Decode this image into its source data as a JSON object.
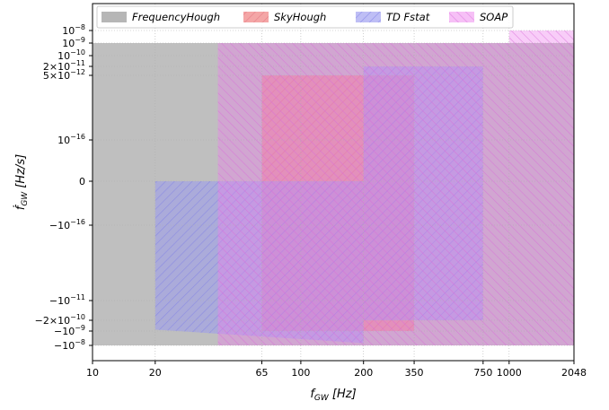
{
  "chart_data": {
    "type": "area",
    "xlabel": "f_GW [Hz]",
    "ylabel": "ḟ_GW [Hz/s]",
    "x_scale": "log",
    "y_scale": "symlog",
    "xlim": [
      10,
      2048
    ],
    "x_ticks": [
      {
        "value": 10,
        "label": "10"
      },
      {
        "value": 20,
        "label": "20"
      },
      {
        "value": 65,
        "label": "65"
      },
      {
        "value": 100,
        "label": "100"
      },
      {
        "value": 200,
        "label": "200"
      },
      {
        "value": 350,
        "label": "350"
      },
      {
        "value": 750,
        "label": "750"
      },
      {
        "value": 1000,
        "label": "1000"
      },
      {
        "value": 2048,
        "label": "2048"
      }
    ],
    "y_ticks": [
      {
        "label": "10−8",
        "value": 1e-08
      },
      {
        "label": "10−9",
        "value": 1e-09
      },
      {
        "label": "10−10",
        "value": 1e-10
      },
      {
        "label": "2×10−11",
        "value": 2e-11
      },
      {
        "label": "5×10−12",
        "value": 5e-12
      },
      {
        "label": "10−16",
        "value": 1e-16
      },
      {
        "label": "0",
        "value": 0
      },
      {
        "label": "−10−16",
        "value": -1e-16
      },
      {
        "label": "−10−11",
        "value": -1e-11
      },
      {
        "label": "−2×10−10",
        "value": -2e-10
      },
      {
        "label": "−10−9",
        "value": -1e-09
      },
      {
        "label": "−10−8",
        "value": -1e-08
      }
    ],
    "legend": {
      "position": "top"
    },
    "series": [
      {
        "name": "FrequencyHough",
        "color": "#a9a9a9",
        "hatch": "none",
        "regions": [
          {
            "x": [
              10,
              2048
            ],
            "y": [
              -1e-08,
              1e-09
            ]
          }
        ]
      },
      {
        "name": "SkyHough",
        "color": "#f08080",
        "hatch": "diagonal",
        "regions": [
          {
            "x": [
              65,
              350
            ],
            "y": [
              -1e-09,
              5e-12
            ]
          }
        ]
      },
      {
        "name": "TD Fstat",
        "color": "#9b9bf0",
        "hatch": "diagonal",
        "regions": [
          {
            "x": [
              20,
              200
            ],
            "y": [
              -5e-09,
              0
            ],
            "bottom_edge": [
              [
                20,
                -8e-10
              ],
              [
                200,
                -7e-09
              ]
            ]
          },
          {
            "x": [
              200,
              750
            ],
            "y": [
              -2e-10,
              2e-11
            ]
          }
        ]
      },
      {
        "name": "SOAP",
        "color": "#ee82ee",
        "hatch": "crosshatch",
        "regions": [
          {
            "x": [
              40,
              1000
            ],
            "y": [
              -1e-08,
              1e-09
            ]
          },
          {
            "x": [
              1000,
              2048
            ],
            "y": [
              -1e-08,
              1e-08
            ]
          }
        ]
      }
    ]
  }
}
